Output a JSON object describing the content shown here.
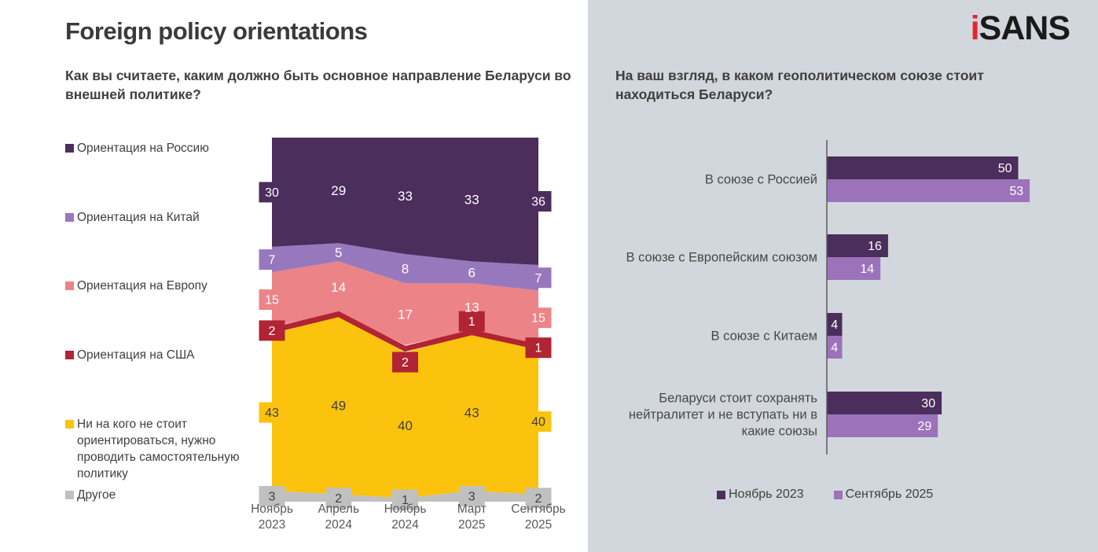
{
  "page": {
    "title": "Foreign policy orientations",
    "brand": {
      "logo_i": "i",
      "logo_rest": "SANS"
    }
  },
  "colors": {
    "russia": "#4b2e5c",
    "china_area": "#9878bd",
    "europe": "#ec8487",
    "usa": "#b02433",
    "independent": "#fcc30e",
    "other": "#c0c0c0",
    "bar_nov2023": "#4b2e5c",
    "bar_sep2025": "#9c72ba",
    "right_panel_bg": "#d2d7dd",
    "logo_red": "#e5262a",
    "text_dark": "#3f3f3f",
    "axis_text": "#595959"
  },
  "chart_data": [
    {
      "type": "area",
      "subtype": "100%-stacked",
      "title": "Как вы считаете, каким должно быть основное направление Беларуси во внешней политике?",
      "x_labels": [
        {
          "line1": "Ноябрь",
          "line2": "2023"
        },
        {
          "line1": "Апрель",
          "line2": "2024"
        },
        {
          "line1": "Ноябрь",
          "line2": "2024"
        },
        {
          "line1": "Март",
          "line2": "2025"
        },
        {
          "line1": "Сентябрь",
          "line2": "2025"
        }
      ],
      "ylim": [
        0,
        100
      ],
      "grid": false,
      "legend_position": "left",
      "series": [
        {
          "name": "Другое",
          "values": [
            3,
            2,
            1,
            3,
            2
          ],
          "color": "#c0c0c0",
          "label_style": "box",
          "text_color": "#3f3f3f"
        },
        {
          "name": "Ни на кого не стоит ориентироваться, нужно проводить самостоятельную политику",
          "values": [
            43,
            49,
            40,
            43,
            40
          ],
          "color": "#fcc30e",
          "label_style": "edge-box",
          "text_color": "#3f3f3f"
        },
        {
          "name": "Ориентация на США",
          "values": [
            2,
            null,
            2,
            1,
            1
          ],
          "color": "#b02433",
          "render": "line",
          "label_style": "box",
          "text_color": "#ffffff"
        },
        {
          "name": "Ориентация на Европу",
          "values": [
            15,
            14,
            17,
            13,
            15
          ],
          "color": "#ec8487",
          "label_style": "edge-box",
          "text_color": "#ffffff"
        },
        {
          "name": "Ориентация на Китай",
          "values": [
            7,
            5,
            8,
            6,
            7
          ],
          "color": "#9878bd",
          "label_style": "edge-box",
          "text_color": "#ffffff"
        },
        {
          "name": "Ориентация на Россию",
          "values": [
            30,
            29,
            33,
            33,
            36
          ],
          "color": "#4b2e5c",
          "fill_to_top": true,
          "label_style": "edge-box",
          "text_color": "#ffffff"
        }
      ]
    },
    {
      "type": "bar",
      "orientation": "horizontal",
      "title": "На ваш взгляд, в каком геополитическом союзе стоит находиться Беларуси?",
      "categories": [
        "В союзе с Россией",
        "В союзе с Европейским союзом",
        "В союзе с Китаем",
        "Беларуси стоит сохранять нейтралитет и не вступать ни в какие союзы"
      ],
      "category_lines": [
        [
          "В союзе с Россией"
        ],
        [
          "В союзе с Европейским союзом"
        ],
        [
          "В союзе с Китаем"
        ],
        [
          "Беларуси стоит сохранять",
          "нейтралитет и не вступать ни в",
          "какие союзы"
        ]
      ],
      "series": [
        {
          "name": "Ноябрь 2023",
          "color": "#4b2e5c",
          "values": [
            50,
            16,
            4,
            30
          ]
        },
        {
          "name": "Сентябрь 2025",
          "color": "#9c72ba",
          "values": [
            53,
            14,
            4,
            29
          ]
        }
      ],
      "xlim": [
        0,
        60
      ],
      "grid": false,
      "value_labels": true,
      "legend_position": "bottom"
    }
  ]
}
